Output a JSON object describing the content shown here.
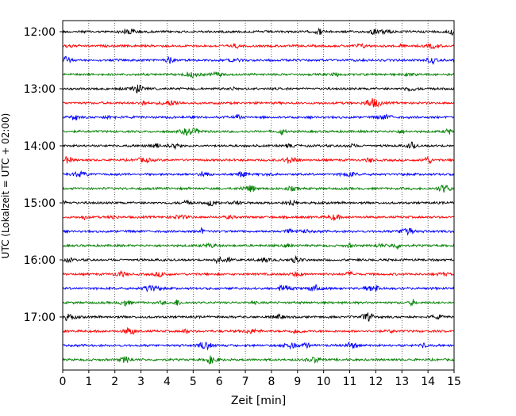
{
  "chart_data": {
    "type": "line",
    "title": "",
    "xlabel": "Zeit  [min]",
    "ylabel": "UTC (Lokalzeit = UTC + 02:00)",
    "xlim": [
      0,
      15
    ],
    "x_ticks": [
      "0",
      "1",
      "2",
      "3",
      "4",
      "5",
      "6",
      "7",
      "8",
      "9",
      "10",
      "11",
      "12",
      "13",
      "14",
      "15"
    ],
    "y_tick_labels": [
      "12:00",
      "13:00",
      "14:00",
      "15:00",
      "16:00",
      "17:00"
    ],
    "row_interval_minutes": 15,
    "first_row": "12:00",
    "last_row": "17:45",
    "row_count": 24,
    "color_cycle": [
      "#000000",
      "#ff0000",
      "#0000ff",
      "#008000"
    ],
    "grid": {
      "vertical_dotted": true,
      "horizontal": false
    },
    "legend": "none",
    "series_description": "helicorder seismic trace rows, 15 min each, colors cycle black/red/blue/green"
  }
}
